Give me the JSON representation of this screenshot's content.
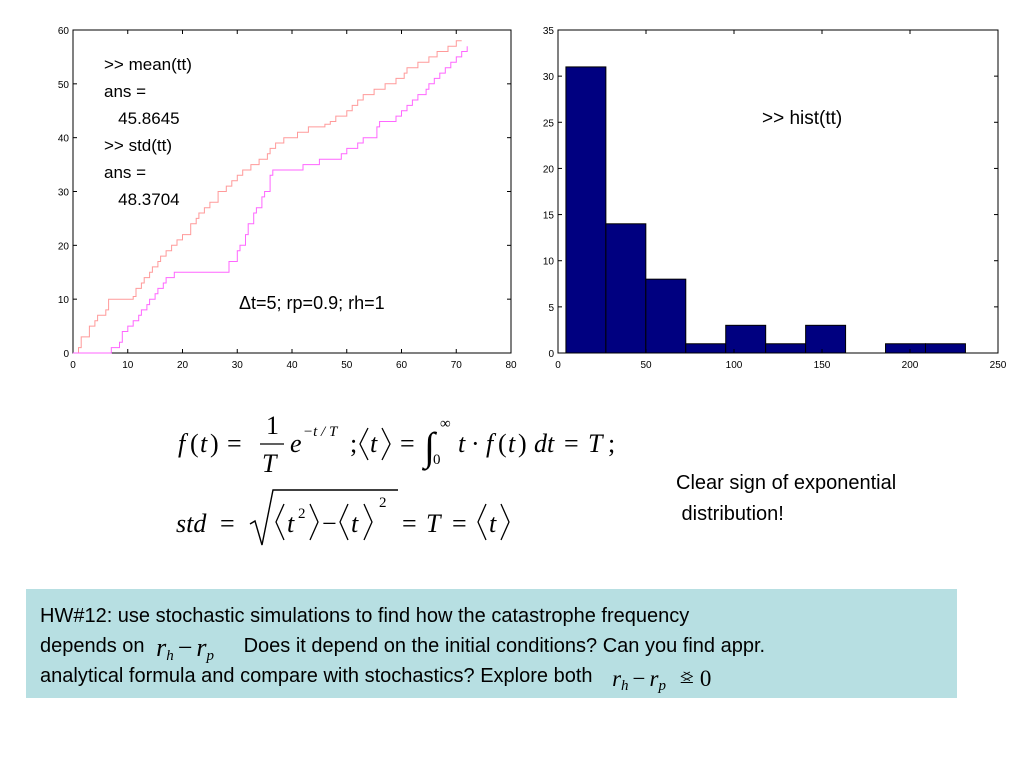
{
  "chart_data": [
    {
      "type": "line",
      "title": "",
      "xlabel": "",
      "ylabel": "",
      "xlim": [
        0,
        80
      ],
      "ylim": [
        0,
        60
      ],
      "xticks": [
        "0",
        "10",
        "20",
        "30",
        "40",
        "50",
        "60",
        "70",
        "80"
      ],
      "yticks": [
        "0",
        "10",
        "20",
        "30",
        "40",
        "50",
        "60"
      ],
      "grid": false,
      "legend": "none",
      "series": [
        {
          "color": "#ff9a9a",
          "x": [
            0,
            1,
            1.5,
            3,
            3,
            4,
            4.5,
            6,
            6.5,
            8,
            8,
            11,
            11.5,
            12.5,
            13,
            14,
            14.5,
            15.5,
            16,
            17,
            18,
            19,
            20,
            21,
            21.5,
            22.5,
            23,
            24,
            25,
            26,
            26.5,
            27.5,
            28,
            29,
            30,
            31,
            31.5,
            32.5,
            33,
            34,
            35.5,
            36,
            37,
            38,
            38.5,
            40,
            41,
            42,
            43,
            44,
            45,
            46,
            47,
            48,
            50,
            51,
            52,
            53,
            54.5,
            55,
            56.5,
            57,
            58,
            59,
            60.5,
            61,
            62,
            63,
            64,
            65,
            65.5,
            66.5,
            67,
            68.5,
            69,
            70,
            71
          ],
          "y": [
            0,
            1,
            3,
            4,
            5,
            6,
            7,
            8,
            10,
            10,
            10,
            10.5,
            12,
            13,
            14,
            15,
            16,
            17,
            18,
            19,
            20,
            21,
            22,
            22,
            24,
            25,
            26,
            27,
            28,
            28,
            30,
            30,
            31,
            32,
            33,
            34,
            34,
            35,
            35,
            36,
            37,
            38,
            39,
            39,
            40,
            40,
            41,
            41,
            42,
            42,
            42,
            42.5,
            43,
            44,
            45,
            46,
            47,
            48,
            48,
            49,
            49,
            50,
            50,
            51,
            52,
            53,
            53,
            54,
            54,
            55,
            55,
            56,
            56,
            57,
            57,
            58,
            58
          ]
        },
        {
          "color": "#ff66ff",
          "x": [
            0,
            7,
            7,
            8.5,
            9,
            10,
            11,
            12,
            12.5,
            13.5,
            14,
            15,
            15.5,
            16.5,
            17,
            18,
            18.5,
            19.5,
            20,
            21,
            22,
            28,
            28.5,
            30,
            30.5,
            31.5,
            32,
            33,
            33.5,
            34.5,
            35,
            36,
            36.5,
            41,
            42,
            43,
            44,
            45,
            48,
            49,
            50,
            51,
            52,
            53,
            54,
            55.5,
            56,
            58,
            59,
            60,
            61,
            62,
            63,
            63.5,
            64.5,
            65,
            66,
            67,
            68,
            69,
            70,
            71,
            72
          ],
          "y": [
            0,
            0,
            1,
            2,
            4,
            5,
            6,
            7,
            8,
            9,
            10,
            11,
            12,
            13,
            14,
            14,
            15,
            15,
            15,
            15,
            15,
            15,
            17,
            19,
            20,
            22,
            24,
            26,
            27,
            29,
            30,
            33,
            34,
            34,
            35,
            35,
            35,
            36,
            36,
            37,
            38,
            38,
            39,
            40,
            40,
            42,
            43,
            43,
            44,
            45,
            46,
            47,
            48,
            48,
            49,
            50,
            51,
            52,
            53,
            54,
            55,
            56,
            57
          ]
        }
      ],
      "annotations": [
        ">> mean(tt)",
        "ans =",
        "   45.8645",
        ">> std(tt)",
        "ans =",
        "   48.3704",
        "Δt=5; rp=0.9; rh=1"
      ]
    },
    {
      "type": "bar",
      "title": "",
      "xlabel": "",
      "ylabel": "",
      "xlim": [
        0,
        250
      ],
      "ylim": [
        0,
        35
      ],
      "xticks": [
        "0",
        "50",
        "100",
        "150",
        "200",
        "250"
      ],
      "yticks": [
        "0",
        "5",
        "10",
        "15",
        "20",
        "25",
        "30",
        "35"
      ],
      "grid": false,
      "legend": "none",
      "bar_color": "#000080",
      "bin_width": 22.7,
      "bin_starts": [
        4.5,
        27.2,
        49.9,
        72.6,
        95.3,
        118.0,
        140.7,
        163.4,
        186.1,
        208.8
      ],
      "values": [
        31,
        14,
        8,
        1,
        3,
        1,
        3,
        0,
        1,
        1
      ],
      "annotations": [
        ">> hist(tt)"
      ]
    }
  ],
  "formulas": {
    "line1": {
      "f": "f",
      "t": "t",
      "eq": "=",
      "one": "1",
      "T": "T",
      "e": "e",
      "exp": "−t / T",
      "semi": ";",
      "int_lower": "0",
      "int_upper": "∞",
      "dt": "dt"
    },
    "line2": {
      "std": "std",
      "sq": "2"
    }
  },
  "conclusion": {
    "line1": "Clear sign of exponential",
    "line2": " distribution!"
  },
  "homework": {
    "line1": "HW#12: use stochastic simulations to find how the catastrophe frequency",
    "line2_pre": "depends on",
    "line2_post": "Does it depend on the initial conditions? Can you find appr.",
    "line3_pre": "analytical formula and compare with stochastics? Explore both",
    "r": "r",
    "h": "h",
    "p": "p",
    "minus": "−",
    "relation": "≤≥",
    "zero": "0"
  },
  "colors": {
    "hw_box": "#b7dfe2",
    "bars": "#000080"
  }
}
